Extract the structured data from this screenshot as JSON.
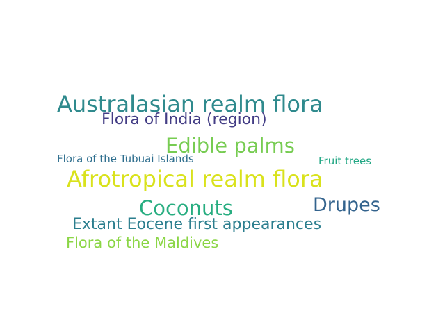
{
  "words": [
    {
      "text": "Australasian realm flora",
      "color": "#2f8a8d"
    },
    {
      "text": "Flora of India (region)",
      "color": "#433d85"
    },
    {
      "text": "Edible palms",
      "color": "#77cc52"
    },
    {
      "text": "Flora of the Tubuai Islands",
      "color": "#2e6e8e"
    },
    {
      "text": "Fruit trees",
      "color": "#22a784"
    },
    {
      "text": "Afrotropical realm flora",
      "color": "#d9e21c"
    },
    {
      "text": "Coconuts",
      "color": "#27ad80"
    },
    {
      "text": "Drupes",
      "color": "#33638d"
    },
    {
      "text": "Extant Eocene first appearances",
      "color": "#2b7e8e"
    },
    {
      "text": "Flora of the Maldives",
      "color": "#8bd646"
    }
  ]
}
